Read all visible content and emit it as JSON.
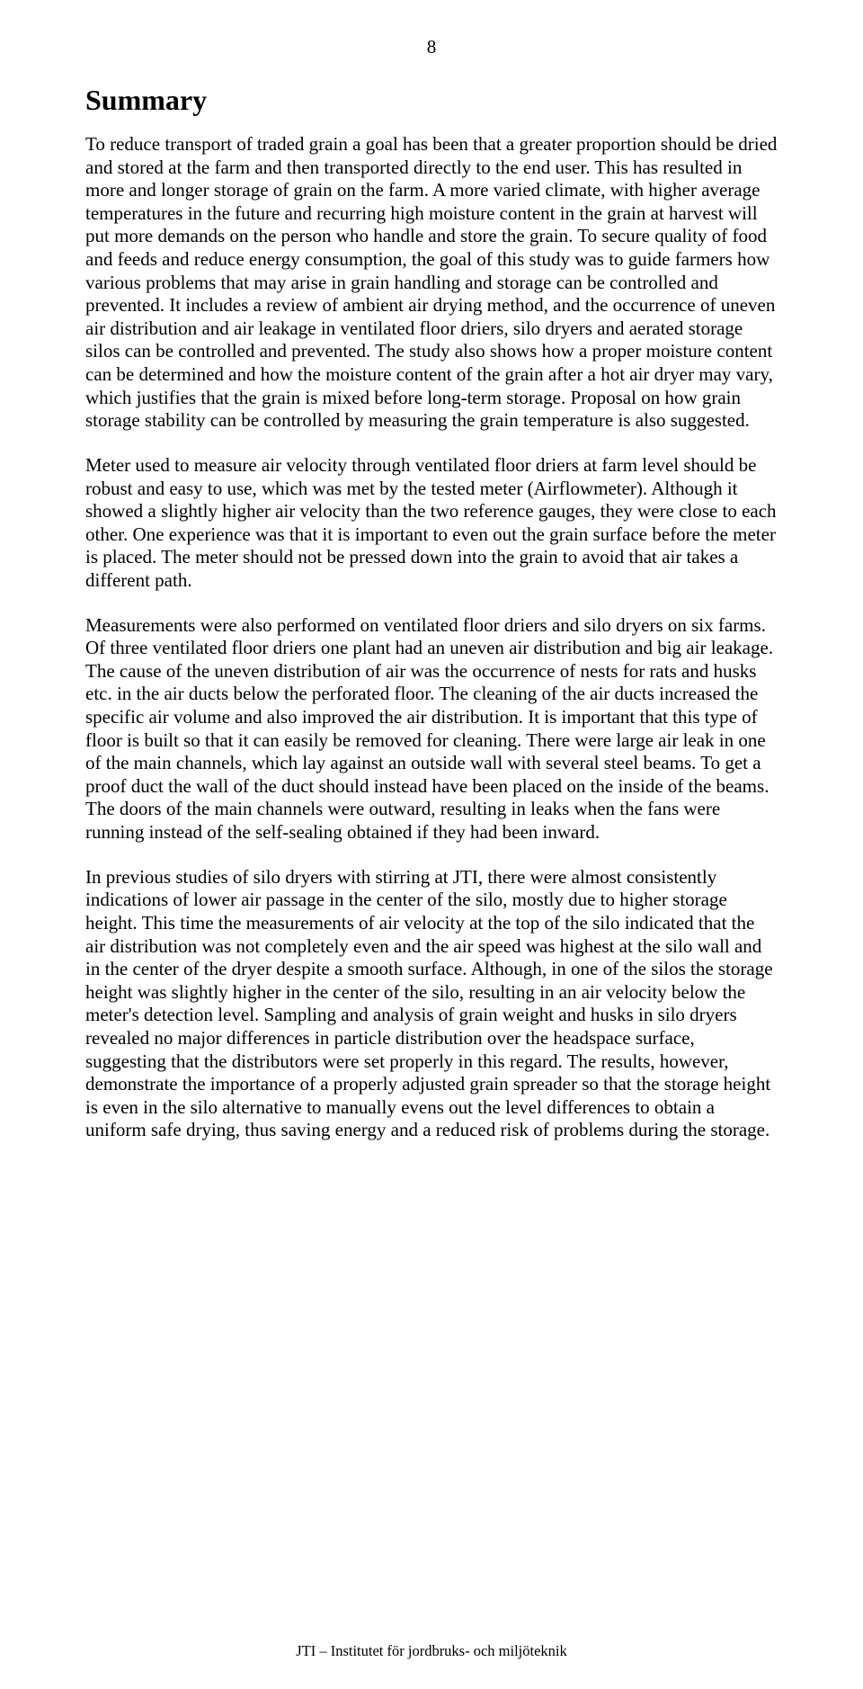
{
  "page_number": "8",
  "heading": "Summary",
  "paragraphs": {
    "p1": "To reduce transport of traded grain a goal has been that a greater proportion should be dried and stored at the farm and then transported directly to the end user. This has resulted in more and longer storage of grain on the farm. A more varied climate, with higher average temperatures in the future and recurring high moisture content in the grain at harvest will put more demands on the person who handle and store the grain. To secure quality of food and feeds and reduce energy consumption, the goal of this study was to guide farmers how various problems that may arise in grain handling and storage can be controlled and prevented. It includes a review of ambient air drying method, and the occurrence of uneven air distribution and air leakage in ventilated floor driers, silo dryers and aerated storage silos can be controlled and prevented. The study also shows how a proper moisture content can be determined and how the moisture content of the grain after a hot air dryer may vary, which justifies that the grain is mixed before long-term storage. Proposal on how grain storage stability can be controlled by measuring the grain temperature is also suggested.",
    "p2": "Meter used to measure air velocity through ventilated floor driers at farm level should be robust and easy to use, which was met by the tested meter (Airflowmeter). Although it showed a slightly higher air velocity than the two reference gauges, they were close to each other. One experience was that it is important to even out the grain surface before the meter is placed. The meter should not be pressed down into the grain to avoid that air takes a different path.",
    "p3": "Measurements were also performed on ventilated floor driers and silo dryers on six farms. Of three ventilated floor driers one plant had an uneven air distribution and big air leakage. The cause of the uneven distribution of air was the occurrence of nests for rats and husks etc. in the air ducts below the perforated floor. The cleaning of the air ducts increased the specific air volume and also improved the air distribution. It is important that this type of floor is built so that it can easily be removed for cleaning. There were large air leak in one of the main channels, which lay against an outside wall with several steel beams. To get a proof duct the wall of the duct should instead have been placed on the inside of the beams. The doors of the main channels were outward, resulting in leaks when the fans were running instead of the self-sealing obtained if they had been inward.",
    "p4": "In previous studies of silo dryers with stirring at JTI, there were almost consistently indications of lower air passage in the center of the silo, mostly due to higher storage height. This time the measurements of air velocity at the top of the silo indicated that the air distribution was not completely even and the air speed was highest at the silo wall and in the center of the dryer despite a smooth surface. Although, in one of the silos the storage height was slightly higher in the center of the silo, resulting in an air velocity below the meter's detection level. Sampling and analysis of grain weight and husks in silo dryers revealed no major differences in particle distribution over the headspace surface, suggesting that the distributors were set properly in this regard. The results, however, demonstrate the importance of a properly adjusted grain spreader so that the storage height is even in the silo alternative to manually evens out the level differences to obtain a uniform safe drying, thus saving energy and a reduced risk of problems during the storage."
  },
  "footer": "JTI – Institutet för jordbruks- och miljöteknik"
}
